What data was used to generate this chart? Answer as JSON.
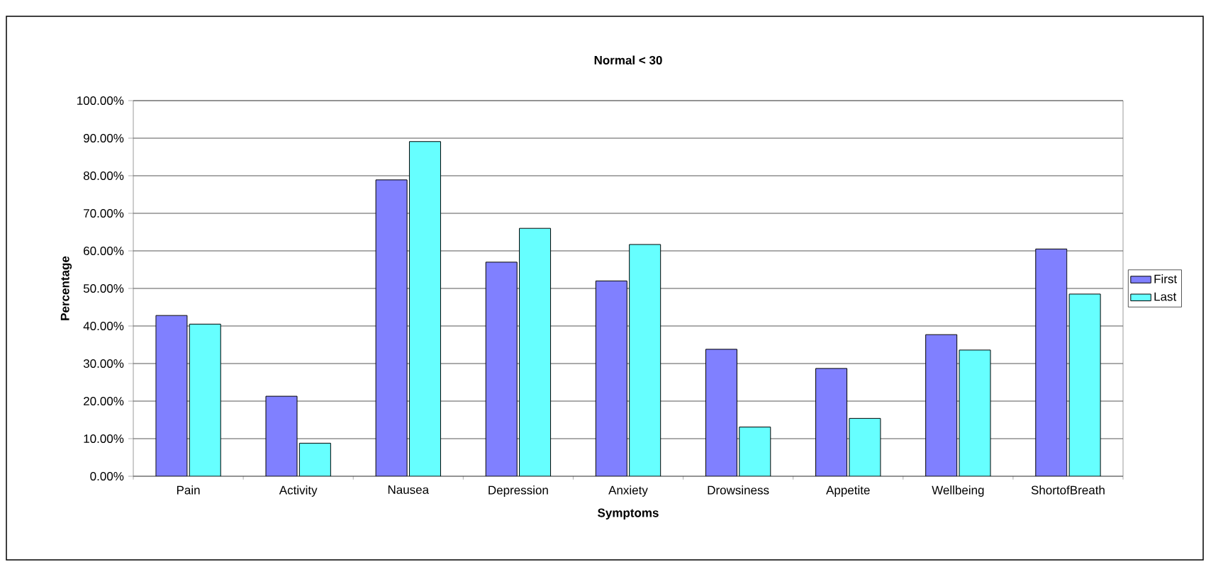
{
  "chart_data": {
    "type": "bar",
    "title": "Normal < 30",
    "xlabel": "Symptoms",
    "ylabel": "Percentage",
    "categories": [
      "Pain",
      "Activity",
      "Nausea",
      "Depression",
      "Anxiety",
      "Drowsiness",
      "Appetite",
      "Wellbeing",
      "ShortofBreath"
    ],
    "series": [
      {
        "name": "First",
        "color": "#8080ff",
        "values": [
          42.8,
          21.3,
          78.9,
          57.0,
          52.0,
          33.8,
          28.7,
          37.7,
          60.5
        ]
      },
      {
        "name": "Last",
        "color": "#66ffff",
        "values": [
          40.5,
          8.8,
          89.1,
          66.0,
          61.7,
          13.1,
          15.4,
          33.6,
          48.5
        ]
      }
    ],
    "ylim": [
      0,
      100
    ],
    "yticks": [
      {
        "value": 0,
        "label": "0.00%"
      },
      {
        "value": 10,
        "label": "10.00%"
      },
      {
        "value": 20,
        "label": "20.00%"
      },
      {
        "value": 30,
        "label": "30.00%"
      },
      {
        "value": 40,
        "label": "40.00%"
      },
      {
        "value": 50,
        "label": "50.00%"
      },
      {
        "value": 60,
        "label": "60.00%"
      },
      {
        "value": 70,
        "label": "70.00%"
      },
      {
        "value": 80,
        "label": "80.00%"
      },
      {
        "value": 90,
        "label": "90.00%"
      },
      {
        "value": 100,
        "label": "100.00%"
      }
    ],
    "grid": "y",
    "legend": "right"
  }
}
